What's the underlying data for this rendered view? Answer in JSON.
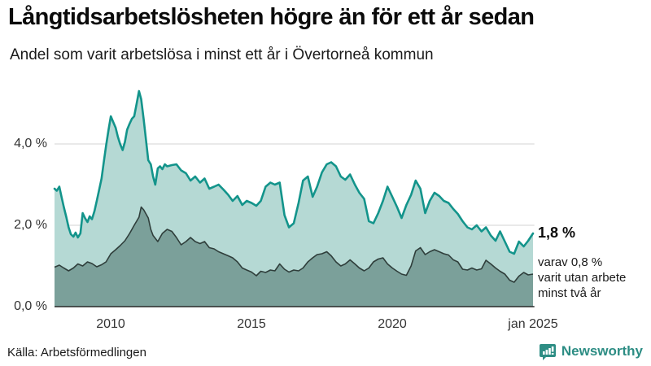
{
  "header": {
    "title": "Långtidsarbetslösheten högre än för ett år sedan",
    "subtitle": "Andel som varit arbetslösa i minst ett år i Övertorneå kommun"
  },
  "annotation": {
    "value_label": "1,8 %",
    "detail_lines": [
      "varav 0,8 %",
      "varit utan arbete",
      "minst två år"
    ]
  },
  "footer": {
    "source": "Källa: Arbetsförmedlingen",
    "brand": "Newsworthy"
  },
  "colors": {
    "line_one_year": "#13948b",
    "fill_one_year": "#b5d9d4",
    "line_two_year": "#2f3e3b",
    "fill_two_year": "#7ba09a",
    "gridline": "#e2e2e2",
    "baseline": "#2a2a2a",
    "brand_teal": "#2d8d84"
  },
  "chart_data": {
    "type": "area",
    "title": "Långtidsarbetslösheten högre än för ett år sedan",
    "subtitle": "Andel som varit arbetslösa i minst ett år i Övertorneå kommun",
    "unit": "%",
    "x_axis": {
      "range": [
        2008,
        2025.05
      ],
      "ticks": [
        {
          "label": "2010",
          "value": 2010
        },
        {
          "label": "2015",
          "value": 2015
        },
        {
          "label": "2020",
          "value": 2020
        },
        {
          "label": "jan 2025",
          "value": 2025
        }
      ]
    },
    "y_axis": {
      "range": [
        0,
        5.6
      ],
      "ticks": [
        {
          "label": "4,0 %",
          "value": 4.0
        },
        {
          "label": "2,0 %",
          "value": 2.0
        },
        {
          "label": "0,0 %",
          "value": 0.0
        }
      ]
    },
    "grid": true,
    "legend_position": "none",
    "series": [
      {
        "name": "Arbetslösa minst ett år",
        "latest_value": 1.8,
        "latest_label": "1,8 %",
        "points": [
          [
            2008.0,
            2.9
          ],
          [
            2008.08,
            2.85
          ],
          [
            2008.17,
            2.95
          ],
          [
            2008.25,
            2.7
          ],
          [
            2008.33,
            2.45
          ],
          [
            2008.42,
            2.2
          ],
          [
            2008.5,
            1.95
          ],
          [
            2008.58,
            1.78
          ],
          [
            2008.67,
            1.72
          ],
          [
            2008.75,
            1.82
          ],
          [
            2008.83,
            1.7
          ],
          [
            2008.92,
            1.8
          ],
          [
            2009.0,
            2.3
          ],
          [
            2009.08,
            2.18
          ],
          [
            2009.17,
            2.08
          ],
          [
            2009.25,
            2.22
          ],
          [
            2009.33,
            2.15
          ],
          [
            2009.42,
            2.35
          ],
          [
            2009.5,
            2.6
          ],
          [
            2009.58,
            2.85
          ],
          [
            2009.67,
            3.15
          ],
          [
            2009.75,
            3.55
          ],
          [
            2009.83,
            3.95
          ],
          [
            2009.92,
            4.35
          ],
          [
            2010.0,
            4.68
          ],
          [
            2010.08,
            4.55
          ],
          [
            2010.17,
            4.4
          ],
          [
            2010.25,
            4.18
          ],
          [
            2010.33,
            4.0
          ],
          [
            2010.42,
            3.85
          ],
          [
            2010.5,
            4.05
          ],
          [
            2010.58,
            4.35
          ],
          [
            2010.67,
            4.5
          ],
          [
            2010.75,
            4.62
          ],
          [
            2010.83,
            4.68
          ],
          [
            2010.92,
            5.0
          ],
          [
            2011.0,
            5.3
          ],
          [
            2011.08,
            5.1
          ],
          [
            2011.17,
            4.6
          ],
          [
            2011.25,
            4.1
          ],
          [
            2011.33,
            3.6
          ],
          [
            2011.42,
            3.5
          ],
          [
            2011.5,
            3.2
          ],
          [
            2011.58,
            3.0
          ],
          [
            2011.67,
            3.4
          ],
          [
            2011.75,
            3.45
          ],
          [
            2011.83,
            3.38
          ],
          [
            2011.92,
            3.5
          ],
          [
            2012.0,
            3.45
          ],
          [
            2012.17,
            3.48
          ],
          [
            2012.33,
            3.5
          ],
          [
            2012.5,
            3.35
          ],
          [
            2012.67,
            3.28
          ],
          [
            2012.83,
            3.1
          ],
          [
            2013.0,
            3.2
          ],
          [
            2013.17,
            3.05
          ],
          [
            2013.33,
            3.15
          ],
          [
            2013.5,
            2.9
          ],
          [
            2013.67,
            2.95
          ],
          [
            2013.83,
            3.0
          ],
          [
            2014.0,
            2.88
          ],
          [
            2014.17,
            2.75
          ],
          [
            2014.33,
            2.6
          ],
          [
            2014.5,
            2.72
          ],
          [
            2014.67,
            2.5
          ],
          [
            2014.83,
            2.6
          ],
          [
            2015.0,
            2.55
          ],
          [
            2015.17,
            2.48
          ],
          [
            2015.33,
            2.6
          ],
          [
            2015.5,
            2.95
          ],
          [
            2015.67,
            3.05
          ],
          [
            2015.83,
            3.0
          ],
          [
            2016.0,
            3.05
          ],
          [
            2016.17,
            2.25
          ],
          [
            2016.33,
            1.95
          ],
          [
            2016.5,
            2.05
          ],
          [
            2016.67,
            2.55
          ],
          [
            2016.83,
            3.1
          ],
          [
            2017.0,
            3.2
          ],
          [
            2017.17,
            2.7
          ],
          [
            2017.33,
            2.95
          ],
          [
            2017.5,
            3.3
          ],
          [
            2017.67,
            3.5
          ],
          [
            2017.83,
            3.55
          ],
          [
            2018.0,
            3.45
          ],
          [
            2018.17,
            3.2
          ],
          [
            2018.33,
            3.12
          ],
          [
            2018.5,
            3.25
          ],
          [
            2018.67,
            3.0
          ],
          [
            2018.83,
            2.8
          ],
          [
            2019.0,
            2.65
          ],
          [
            2019.17,
            2.1
          ],
          [
            2019.33,
            2.05
          ],
          [
            2019.5,
            2.3
          ],
          [
            2019.67,
            2.6
          ],
          [
            2019.83,
            2.95
          ],
          [
            2020.0,
            2.7
          ],
          [
            2020.17,
            2.45
          ],
          [
            2020.33,
            2.18
          ],
          [
            2020.5,
            2.5
          ],
          [
            2020.67,
            2.75
          ],
          [
            2020.83,
            3.1
          ],
          [
            2021.0,
            2.9
          ],
          [
            2021.17,
            2.3
          ],
          [
            2021.33,
            2.6
          ],
          [
            2021.5,
            2.8
          ],
          [
            2021.67,
            2.72
          ],
          [
            2021.83,
            2.6
          ],
          [
            2022.0,
            2.55
          ],
          [
            2022.17,
            2.4
          ],
          [
            2022.33,
            2.28
          ],
          [
            2022.5,
            2.1
          ],
          [
            2022.67,
            1.95
          ],
          [
            2022.83,
            1.9
          ],
          [
            2023.0,
            2.0
          ],
          [
            2023.17,
            1.85
          ],
          [
            2023.33,
            1.95
          ],
          [
            2023.5,
            1.75
          ],
          [
            2023.67,
            1.62
          ],
          [
            2023.83,
            1.85
          ],
          [
            2024.0,
            1.6
          ],
          [
            2024.17,
            1.35
          ],
          [
            2024.33,
            1.3
          ],
          [
            2024.5,
            1.6
          ],
          [
            2024.67,
            1.48
          ],
          [
            2024.83,
            1.62
          ],
          [
            2025.0,
            1.8
          ]
        ]
      },
      {
        "name": "varav utan arbete minst två år",
        "latest_value": 0.8,
        "latest_label": "0,8 %",
        "points": [
          [
            2008.0,
            0.97
          ],
          [
            2008.17,
            1.02
          ],
          [
            2008.33,
            0.95
          ],
          [
            2008.5,
            0.88
          ],
          [
            2008.67,
            0.95
          ],
          [
            2008.83,
            1.05
          ],
          [
            2009.0,
            1.0
          ],
          [
            2009.17,
            1.1
          ],
          [
            2009.33,
            1.06
          ],
          [
            2009.5,
            0.98
          ],
          [
            2009.67,
            1.03
          ],
          [
            2009.83,
            1.1
          ],
          [
            2010.0,
            1.3
          ],
          [
            2010.17,
            1.4
          ],
          [
            2010.33,
            1.5
          ],
          [
            2010.5,
            1.62
          ],
          [
            2010.67,
            1.8
          ],
          [
            2010.83,
            2.0
          ],
          [
            2011.0,
            2.2
          ],
          [
            2011.08,
            2.45
          ],
          [
            2011.17,
            2.38
          ],
          [
            2011.25,
            2.28
          ],
          [
            2011.33,
            2.18
          ],
          [
            2011.42,
            1.9
          ],
          [
            2011.5,
            1.75
          ],
          [
            2011.67,
            1.6
          ],
          [
            2011.83,
            1.8
          ],
          [
            2012.0,
            1.9
          ],
          [
            2012.17,
            1.85
          ],
          [
            2012.33,
            1.7
          ],
          [
            2012.5,
            1.52
          ],
          [
            2012.67,
            1.6
          ],
          [
            2012.83,
            1.7
          ],
          [
            2013.0,
            1.6
          ],
          [
            2013.17,
            1.55
          ],
          [
            2013.33,
            1.6
          ],
          [
            2013.5,
            1.45
          ],
          [
            2013.67,
            1.42
          ],
          [
            2013.83,
            1.35
          ],
          [
            2014.0,
            1.3
          ],
          [
            2014.17,
            1.25
          ],
          [
            2014.33,
            1.2
          ],
          [
            2014.5,
            1.1
          ],
          [
            2014.67,
            0.95
          ],
          [
            2014.83,
            0.9
          ],
          [
            2015.0,
            0.85
          ],
          [
            2015.17,
            0.76
          ],
          [
            2015.33,
            0.87
          ],
          [
            2015.5,
            0.84
          ],
          [
            2015.67,
            0.9
          ],
          [
            2015.83,
            0.88
          ],
          [
            2016.0,
            1.05
          ],
          [
            2016.17,
            0.92
          ],
          [
            2016.33,
            0.85
          ],
          [
            2016.5,
            0.9
          ],
          [
            2016.67,
            0.88
          ],
          [
            2016.83,
            0.95
          ],
          [
            2017.0,
            1.1
          ],
          [
            2017.17,
            1.2
          ],
          [
            2017.33,
            1.28
          ],
          [
            2017.5,
            1.3
          ],
          [
            2017.67,
            1.35
          ],
          [
            2017.83,
            1.25
          ],
          [
            2018.0,
            1.1
          ],
          [
            2018.17,
            1.0
          ],
          [
            2018.33,
            1.05
          ],
          [
            2018.5,
            1.15
          ],
          [
            2018.67,
            1.05
          ],
          [
            2018.83,
            0.95
          ],
          [
            2019.0,
            0.88
          ],
          [
            2019.17,
            0.95
          ],
          [
            2019.33,
            1.1
          ],
          [
            2019.5,
            1.17
          ],
          [
            2019.67,
            1.2
          ],
          [
            2019.83,
            1.05
          ],
          [
            2020.0,
            0.95
          ],
          [
            2020.17,
            0.87
          ],
          [
            2020.33,
            0.8
          ],
          [
            2020.5,
            0.77
          ],
          [
            2020.67,
            1.0
          ],
          [
            2020.83,
            1.37
          ],
          [
            2021.0,
            1.45
          ],
          [
            2021.17,
            1.28
          ],
          [
            2021.33,
            1.35
          ],
          [
            2021.5,
            1.4
          ],
          [
            2021.67,
            1.35
          ],
          [
            2021.83,
            1.3
          ],
          [
            2022.0,
            1.27
          ],
          [
            2022.17,
            1.15
          ],
          [
            2022.33,
            1.1
          ],
          [
            2022.5,
            0.92
          ],
          [
            2022.67,
            0.9
          ],
          [
            2022.83,
            0.95
          ],
          [
            2023.0,
            0.9
          ],
          [
            2023.17,
            0.93
          ],
          [
            2023.33,
            1.14
          ],
          [
            2023.5,
            1.05
          ],
          [
            2023.67,
            0.95
          ],
          [
            2023.83,
            0.87
          ],
          [
            2024.0,
            0.8
          ],
          [
            2024.17,
            0.65
          ],
          [
            2024.33,
            0.6
          ],
          [
            2024.5,
            0.75
          ],
          [
            2024.67,
            0.84
          ],
          [
            2024.83,
            0.78
          ],
          [
            2025.0,
            0.8
          ]
        ]
      }
    ]
  }
}
